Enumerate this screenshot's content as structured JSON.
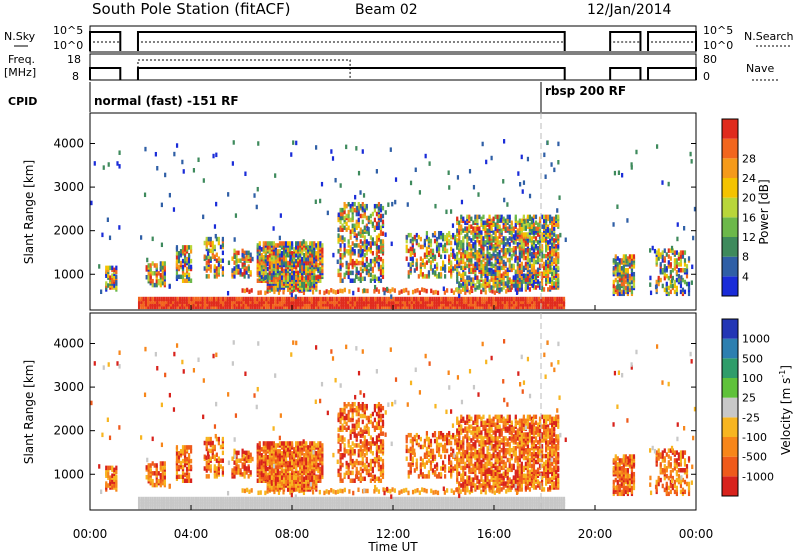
{
  "header": {
    "station": "South Pole Station (fitACF)",
    "beam": "Beam 02",
    "date": "12/Jan/2014"
  },
  "top_panels": {
    "nsky_label": "N.Sky",
    "nsky_ticks": [
      "10^5",
      "10^0"
    ],
    "nsearch_label": "N.Search",
    "nsearch_ticks": [
      "10^5",
      "10^0"
    ],
    "freq_label_1": "Freq.",
    "freq_label_2": "[MHz]",
    "freq_ticks": [
      "18",
      "8"
    ],
    "nave_label": "Nave",
    "nave_ticks": [
      "80",
      "0"
    ],
    "cpid_label": "CPID",
    "cpid_1": "normal (fast) -151 RF",
    "cpid_2": "rbsp 200 RF"
  },
  "chart_data": [
    {
      "type": "heatmap",
      "panel": "power",
      "ylabel": "Slant Range [km]",
      "xlabel": "Time UT",
      "x_ticks": [
        "00:00",
        "04:00",
        "08:00",
        "12:00",
        "16:00",
        "20:00",
        "00:00"
      ],
      "y_ticks": [
        1000,
        2000,
        3000,
        4000
      ],
      "xlim_hours": [
        0,
        24
      ],
      "ylim_km": [
        180,
        4700
      ],
      "colorbar_label": "Power [dB]",
      "colorbar_ticks": [
        "4",
        "8",
        "12",
        "16",
        "20",
        "24",
        "28"
      ],
      "colors": [
        "#1a2cd8",
        "#2f5fa6",
        "#3e8a5c",
        "#6cb84a",
        "#b8d63a",
        "#f4c300",
        "#f59a1a",
        "#f2661e",
        "#e02b1d"
      ],
      "data_gaps_hours": [
        [
          1.2,
          1.9
        ],
        [
          18.8,
          20.6
        ],
        [
          21.8,
          22.1
        ]
      ],
      "cpid_change_hour": 17.95
    },
    {
      "type": "heatmap",
      "panel": "velocity",
      "ylabel": "Slant Range [km]",
      "xlabel": "Time UT",
      "x_ticks": [
        "00:00",
        "04:00",
        "08:00",
        "12:00",
        "16:00",
        "20:00",
        "00:00"
      ],
      "y_ticks": [
        1000,
        2000,
        3000,
        4000
      ],
      "xlim_hours": [
        0,
        24
      ],
      "ylim_km": [
        180,
        4700
      ],
      "colorbar_label": "Velocity [m s",
      "colorbar_label_sup": "-1",
      "colorbar_label_end": "]",
      "colorbar_ticks": [
        "1000",
        "500",
        "100",
        "25",
        "-25",
        "-100",
        "-500",
        "-1000"
      ],
      "colors": [
        "#2336b5",
        "#2d7fb0",
        "#2f9d6a",
        "#5fc23a",
        "#c8c8c8",
        "#f7b520",
        "#f7861a",
        "#ef5a1b",
        "#d8221c"
      ]
    }
  ]
}
